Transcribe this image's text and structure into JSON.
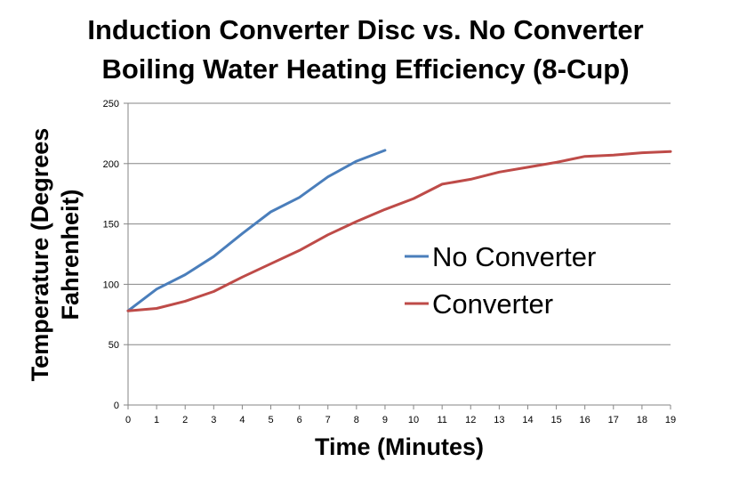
{
  "chart_data": {
    "type": "line",
    "title_line1": "Induction Converter Disc vs. No Converter",
    "title_line2": "Boiling Water Heating Efficiency (8-Cup)",
    "xlabel": "Time (Minutes)",
    "ylabel_line1": "Temperature (Degrees",
    "ylabel_line2": "Fahrenheit)",
    "xlim": [
      0,
      19
    ],
    "ylim": [
      0,
      250
    ],
    "xticks": [
      0,
      1,
      2,
      3,
      4,
      5,
      6,
      7,
      8,
      9,
      10,
      11,
      12,
      13,
      14,
      15,
      16,
      17,
      18,
      19
    ],
    "yticks": [
      0,
      50,
      100,
      150,
      200,
      250
    ],
    "grid": true,
    "legend_position": "center-right",
    "series": [
      {
        "name": "No Converter",
        "color": "#4a7ebb",
        "x": [
          0,
          1,
          2,
          3,
          4,
          5,
          6,
          7,
          8,
          9
        ],
        "y": [
          78,
          96,
          108,
          123,
          142,
          160,
          172,
          189,
          202,
          211
        ]
      },
      {
        "name": "Converter",
        "color": "#be4b48",
        "x": [
          0,
          1,
          2,
          3,
          4,
          5,
          6,
          7,
          8,
          9,
          10,
          11,
          12,
          13,
          14,
          15,
          16,
          17,
          18,
          19
        ],
        "y": [
          78,
          80,
          86,
          94,
          106,
          117,
          128,
          141,
          152,
          162,
          171,
          183,
          187,
          193,
          197,
          201,
          206,
          207,
          209,
          210
        ]
      }
    ]
  }
}
